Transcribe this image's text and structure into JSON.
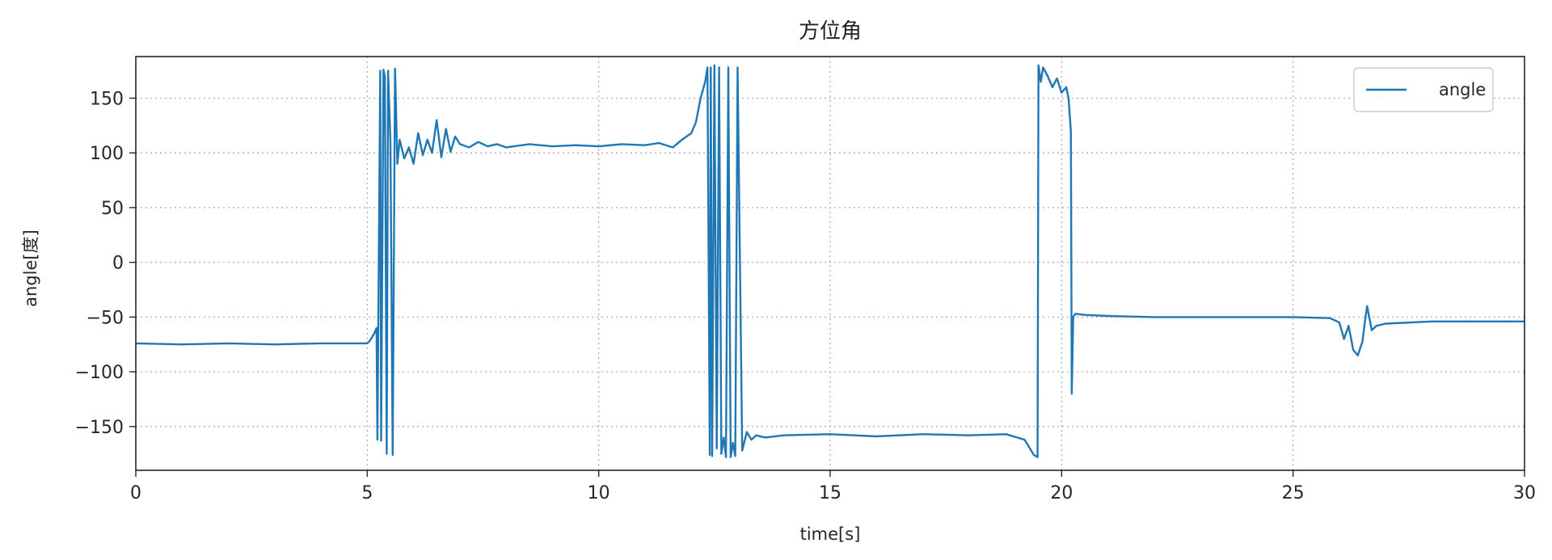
{
  "chart_data": {
    "type": "line",
    "title": "方位角",
    "xlabel": "time[s]",
    "ylabel": "angle[度]",
    "xlim": [
      0,
      30
    ],
    "ylim": [
      -190,
      188
    ],
    "xticks": [
      0,
      5,
      10,
      15,
      20,
      25,
      30
    ],
    "yticks": [
      150,
      100,
      50,
      0,
      -50,
      -100,
      -150
    ],
    "xtick_labels": [
      "0",
      "5",
      "10",
      "15",
      "20",
      "25",
      "30"
    ],
    "ytick_labels": [
      "150",
      "100",
      "50",
      "0",
      "−50",
      "−100",
      "−150"
    ],
    "grid": true,
    "legend_position": "top-right",
    "colors": {
      "series": "#1f77b4",
      "grid": "#b0b0b0"
    },
    "series": [
      {
        "name": "angle",
        "x": [
          0,
          1,
          2,
          3,
          4,
          5,
          5.05,
          5.15,
          5.2,
          5.22,
          5.28,
          5.3,
          5.35,
          5.38,
          5.42,
          5.45,
          5.5,
          5.55,
          5.6,
          5.65,
          5.7,
          5.8,
          5.9,
          6.0,
          6.1,
          6.2,
          6.3,
          6.4,
          6.5,
          6.6,
          6.7,
          6.8,
          6.9,
          7.0,
          7.2,
          7.4,
          7.6,
          7.8,
          8.0,
          8.5,
          9.0,
          9.5,
          10.0,
          10.5,
          11.0,
          11.3,
          11.6,
          11.8,
          12.0,
          12.1,
          12.2,
          12.3,
          12.35,
          12.4,
          12.42,
          12.45,
          12.5,
          12.55,
          12.6,
          12.65,
          12.7,
          12.75,
          12.8,
          12.85,
          12.9,
          12.95,
          13.0,
          13.1,
          13.2,
          13.3,
          13.4,
          13.6,
          14.0,
          15.0,
          16.0,
          17.0,
          18.0,
          18.8,
          19.2,
          19.4,
          19.48,
          19.5,
          19.55,
          19.6,
          19.7,
          19.8,
          19.9,
          20.0,
          20.1,
          20.15,
          20.2,
          20.22,
          20.25,
          20.28,
          20.3,
          20.5,
          21.0,
          22.0,
          23.0,
          24.0,
          25.0,
          25.8,
          26.0,
          26.1,
          26.2,
          26.3,
          26.4,
          26.5,
          26.55,
          26.6,
          26.7,
          26.8,
          27.0,
          28.0,
          29.0,
          30.0
        ],
        "y": [
          -74,
          -75,
          -74,
          -75,
          -74,
          -74,
          -72,
          -65,
          -60,
          -162,
          175,
          -163,
          176,
          170,
          -175,
          175,
          110,
          -176,
          177,
          90,
          112,
          95,
          105,
          90,
          118,
          98,
          112,
          100,
          130,
          96,
          122,
          101,
          115,
          108,
          105,
          110,
          106,
          108,
          105,
          108,
          106,
          107,
          106,
          108,
          107,
          109,
          105,
          112,
          118,
          128,
          150,
          165,
          178,
          -176,
          178,
          -177,
          180,
          -170,
          178,
          -175,
          -160,
          -178,
          178,
          -178,
          -165,
          -177,
          178,
          -172,
          -155,
          -162,
          -158,
          -160,
          -158,
          -157,
          -159,
          -157,
          -158,
          -157,
          -162,
          -176,
          -178,
          180,
          165,
          178,
          170,
          160,
          168,
          155,
          160,
          150,
          120,
          -120,
          -50,
          -48,
          -47,
          -48,
          -49,
          -50,
          -50,
          -50,
          -50,
          -51,
          -55,
          -70,
          -58,
          -80,
          -85,
          -72,
          -55,
          -40,
          -62,
          -58,
          -56,
          -54,
          -54,
          -54
        ]
      }
    ]
  }
}
